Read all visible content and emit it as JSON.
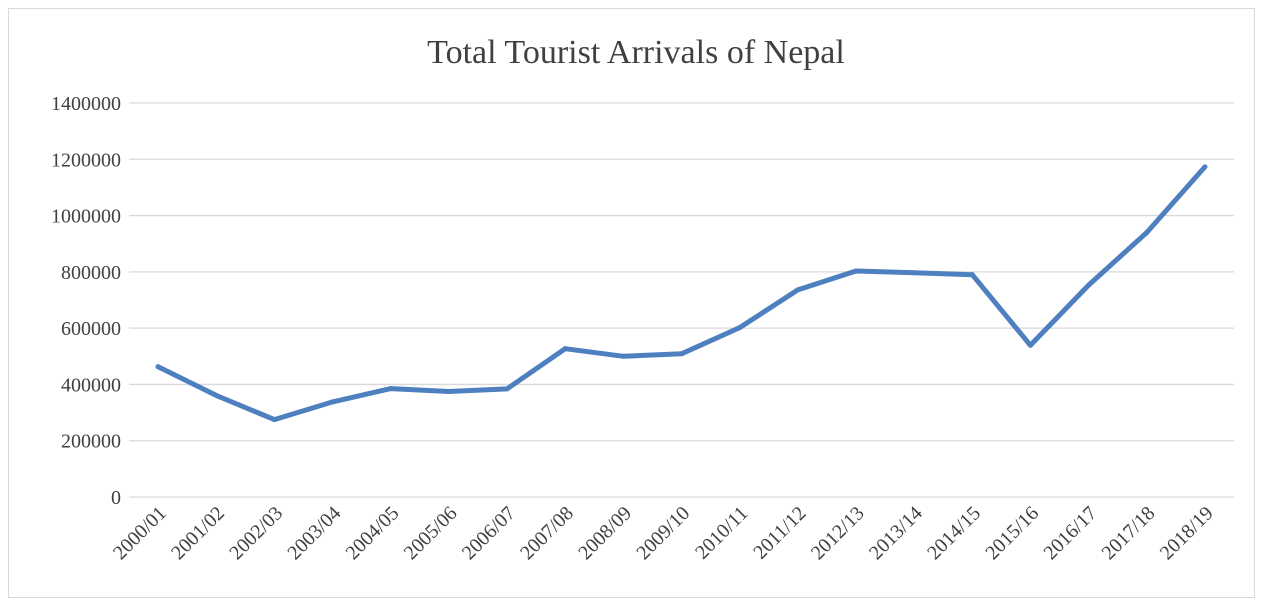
{
  "chart_data": {
    "type": "line",
    "title": "Total Tourist Arrivals of Nepal",
    "xlabel": "",
    "ylabel": "",
    "categories": [
      "2000/01",
      "2001/02",
      "2002/03",
      "2003/04",
      "2004/05",
      "2005/06",
      "2006/07",
      "2007/08",
      "2008/09",
      "2009/10",
      "2010/11",
      "2011/12",
      "2012/13",
      "2013/14",
      "2014/15",
      "2015/16",
      "2016/17",
      "2017/18",
      "2018/19"
    ],
    "series": [
      {
        "values": [
          463000,
          361000,
          275000,
          338000,
          385000,
          375000,
          384000,
          527000,
          500000,
          509000,
          602000,
          736000,
          803000,
          797000,
          790000,
          539000,
          753000,
          940000,
          1173000
        ]
      }
    ],
    "ylim": [
      0,
      1400000
    ],
    "yticks": [
      "0",
      "200000",
      "400000",
      "600000",
      "800000",
      "1000000",
      "1200000",
      "1400000"
    ],
    "grid": true,
    "legend": "none",
    "line_color": "#4e7fbf"
  }
}
